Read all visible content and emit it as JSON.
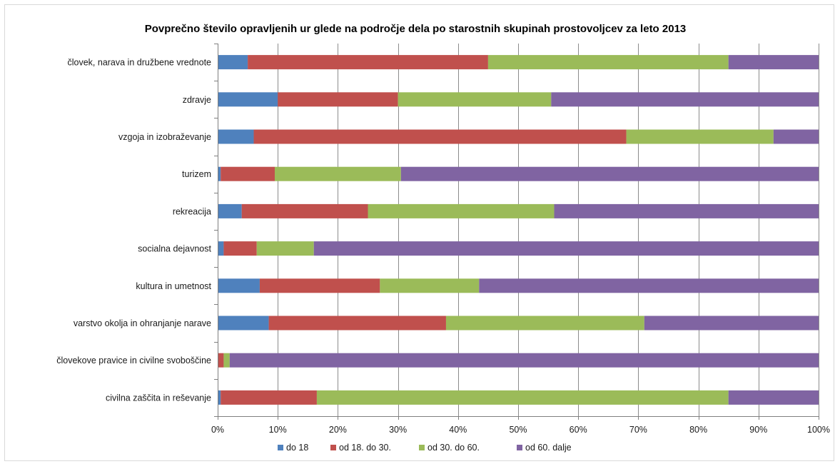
{
  "chart_data": {
    "type": "bar",
    "orientation": "horizontal",
    "stacked": "percent",
    "title": "Povprečno število opravljenih ur glede na področje dela po starostnih skupinah prostovoljcev za leto 2013",
    "xlabel": "",
    "ylabel": "",
    "xlim": [
      0,
      100
    ],
    "x_ticks": [
      "0%",
      "10%",
      "20%",
      "30%",
      "40%",
      "50%",
      "60%",
      "70%",
      "80%",
      "90%",
      "100%"
    ],
    "grid": "vertical",
    "legend_position": "bottom",
    "categories": [
      "človek, narava in družbene vrednote",
      "zdravje",
      "vzgoja in izobraževanje",
      "turizem",
      "rekreacija",
      "socialna dejavnost",
      "kultura in umetnost",
      "varstvo okolja in ohranjanje narave",
      "človekove pravice in civilne svoboščine",
      "civilna zaščita in reševanje"
    ],
    "series": [
      {
        "name": "do 18",
        "color": "#4f81bd",
        "values": [
          5,
          10,
          6,
          0.5,
          4,
          1,
          7,
          8.5,
          0,
          0.5
        ]
      },
      {
        "name": "od 18. do 30.",
        "color": "#c0504d",
        "values": [
          40,
          20,
          62,
          9,
          21,
          5.5,
          20,
          29.5,
          1,
          16
        ]
      },
      {
        "name": "od 30. do 60.",
        "color": "#9bbb59",
        "values": [
          40,
          25.5,
          24.5,
          21,
          31,
          9.5,
          16.5,
          33,
          1,
          68.5
        ]
      },
      {
        "name": "od 60. dalje",
        "color": "#8064a2",
        "values": [
          15,
          44.5,
          7.5,
          69.5,
          44,
          84,
          56.5,
          29,
          98,
          15
        ]
      }
    ]
  }
}
